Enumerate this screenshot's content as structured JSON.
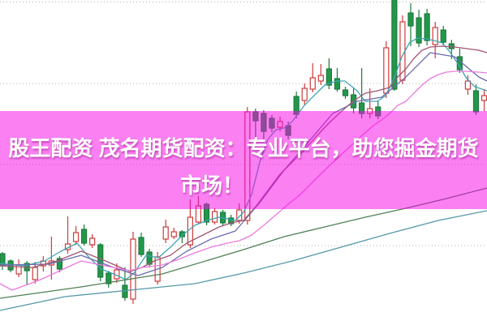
{
  "banner": {
    "line1": "股王配资 茂名期货配资：专业平台，助您掘金期货",
    "line2": "市场！",
    "bg_rgba": "rgba(247,1,229,0.5)",
    "text_color": "#ffffff"
  },
  "chart_data": {
    "type": "candlestick",
    "title": "",
    "xlabel": "",
    "ylabel": "",
    "x_start": 3,
    "x_step": 10.06,
    "ylim": [
      0,
      410
    ],
    "grid": "dotted-horizontal",
    "gridline_values": [
      397.5,
      297,
      197,
      97
    ],
    "gridline_color": "#b0b0b0",
    "up_candle": {
      "style": "hollow",
      "stroke": "#cf3a3a",
      "fill": "#ffffff"
    },
    "down_candle": {
      "style": "filled",
      "stroke": "#1d7a3c",
      "fill": "#22984a"
    },
    "candles_columns": [
      "open",
      "high",
      "low",
      "close"
    ],
    "candles": [
      [
        87,
        89,
        67,
        72
      ],
      [
        78,
        80,
        64,
        67
      ],
      [
        62,
        80,
        58,
        73
      ],
      [
        75,
        78,
        48,
        66
      ],
      [
        55,
        77,
        50,
        70
      ],
      [
        72,
        84,
        65,
        78
      ],
      [
        73,
        108,
        55,
        78
      ],
      [
        81,
        84,
        64,
        68
      ],
      [
        92,
        133,
        87,
        99
      ],
      [
        102,
        121,
        98,
        113
      ],
      [
        117,
        123,
        97,
        100
      ],
      [
        98,
        111,
        94,
        106
      ],
      [
        98,
        100,
        53,
        58
      ],
      [
        63,
        66,
        45,
        50
      ],
      [
        56,
        75,
        51,
        67
      ],
      [
        48,
        70,
        29,
        33
      ],
      [
        31,
        114,
        25,
        105
      ],
      [
        107,
        113,
        83,
        86
      ],
      [
        89,
        93,
        70,
        74
      ],
      [
        53,
        89,
        49,
        83
      ],
      [
        105,
        129,
        100,
        120
      ],
      [
        108,
        119,
        105,
        114
      ],
      [
        114,
        116,
        100,
        108
      ],
      [
        98,
        154,
        94,
        132
      ],
      [
        126,
        158,
        123,
        146
      ],
      [
        148,
        150,
        122,
        126
      ],
      [
        126,
        143,
        123,
        139
      ],
      [
        138,
        141,
        122,
        125
      ],
      [
        131,
        135,
        121,
        124
      ],
      [
        128,
        149,
        124,
        141
      ],
      [
        128,
        268,
        123,
        262
      ],
      [
        262,
        266,
        231,
        251
      ],
      [
        260,
        264,
        226,
        238
      ],
      [
        254,
        258,
        237,
        242
      ],
      [
        243,
        256,
        238,
        250
      ],
      [
        245,
        250,
        228,
        233
      ],
      [
        281,
        287,
        254,
        259
      ],
      [
        276,
        297,
        271,
        291
      ],
      [
        290,
        322,
        286,
        304
      ],
      [
        300,
        321,
        295,
        307
      ],
      [
        315,
        328,
        290,
        295
      ],
      [
        303,
        316,
        287,
        290
      ],
      [
        289,
        293,
        278,
        282
      ],
      [
        283,
        291,
        260,
        267
      ],
      [
        273,
        316,
        254,
        260
      ],
      [
        260,
        291,
        254,
        266
      ],
      [
        268,
        275,
        253,
        257
      ],
      [
        285,
        349,
        279,
        341
      ],
      [
        405,
        409,
        288,
        290
      ],
      [
        301,
        381,
        296,
        373
      ],
      [
        384,
        396,
        343,
        368
      ],
      [
        378,
        388,
        342,
        347
      ],
      [
        383,
        389,
        344,
        350
      ],
      [
        345,
        373,
        328,
        366
      ],
      [
        363,
        368,
        344,
        348
      ],
      [
        346,
        351,
        327,
        340
      ],
      [
        330,
        340,
        310,
        314
      ],
      [
        290,
        307,
        283,
        300
      ],
      [
        288,
        296,
        258,
        262
      ],
      [
        276,
        290,
        263,
        282
      ]
    ],
    "ma_lines": [
      {
        "name": "ma-fast-teal",
        "color": "#3fa3b5",
        "points": [
          [
            0,
            75
          ],
          [
            30,
            72
          ],
          [
            55,
            78
          ],
          [
            75,
            90
          ],
          [
            95,
            100
          ],
          [
            110,
            82
          ],
          [
            125,
            68
          ],
          [
            140,
            62
          ],
          [
            155,
            55
          ],
          [
            165,
            63
          ],
          [
            180,
            85
          ],
          [
            195,
            82
          ],
          [
            210,
            95
          ],
          [
            225,
            110
          ],
          [
            240,
            122
          ],
          [
            255,
            128
          ],
          [
            270,
            132
          ],
          [
            280,
            130
          ],
          [
            290,
            128
          ],
          [
            300,
            138
          ],
          [
            310,
            160
          ],
          [
            320,
            200
          ],
          [
            330,
            228
          ],
          [
            340,
            240
          ],
          [
            350,
            242
          ],
          [
            360,
            250
          ],
          [
            375,
            270
          ],
          [
            390,
            285
          ],
          [
            400,
            295
          ],
          [
            415,
            300
          ],
          [
            425,
            300
          ],
          [
            440,
            288
          ],
          [
            450,
            275
          ],
          [
            465,
            275
          ],
          [
            475,
            282
          ],
          [
            485,
            302
          ],
          [
            495,
            330
          ],
          [
            505,
            348
          ],
          [
            515,
            353
          ],
          [
            525,
            352
          ],
          [
            535,
            350
          ],
          [
            545,
            347
          ],
          [
            555,
            335
          ],
          [
            565,
            320
          ],
          [
            575,
            303
          ],
          [
            585,
            293
          ],
          [
            600,
            288
          ]
        ]
      },
      {
        "name": "ma-slate",
        "color": "#6b6bb0",
        "points": [
          [
            0,
            73
          ],
          [
            60,
            74
          ],
          [
            100,
            85
          ],
          [
            140,
            70
          ],
          [
            170,
            60
          ],
          [
            200,
            70
          ],
          [
            230,
            90
          ],
          [
            260,
            105
          ],
          [
            290,
            115
          ],
          [
            320,
            150
          ],
          [
            350,
            190
          ],
          [
            380,
            225
          ],
          [
            410,
            260
          ],
          [
            440,
            275
          ],
          [
            470,
            280
          ],
          [
            500,
            305
          ],
          [
            530,
            335
          ],
          [
            560,
            330
          ],
          [
            590,
            305
          ],
          [
            600,
            300
          ]
        ]
      },
      {
        "name": "ma-maroon",
        "color": "#a05570",
        "points": [
          [
            0,
            72
          ],
          [
            40,
            70
          ],
          [
            70,
            78
          ],
          [
            100,
            90
          ],
          [
            130,
            78
          ],
          [
            160,
            65
          ],
          [
            175,
            70
          ],
          [
            190,
            78
          ],
          [
            210,
            85
          ],
          [
            230,
            100
          ],
          [
            250,
            110
          ],
          [
            270,
            120
          ],
          [
            285,
            125
          ],
          [
            300,
            128
          ],
          [
            315,
            145
          ],
          [
            330,
            165
          ],
          [
            345,
            185
          ],
          [
            360,
            200
          ],
          [
            375,
            215
          ],
          [
            390,
            232
          ],
          [
            405,
            248
          ],
          [
            420,
            262
          ],
          [
            435,
            275
          ],
          [
            450,
            285
          ],
          [
            465,
            288
          ],
          [
            480,
            292
          ],
          [
            490,
            305
          ],
          [
            500,
            315
          ],
          [
            510,
            328
          ],
          [
            520,
            338
          ],
          [
            530,
            342
          ],
          [
            545,
            343
          ],
          [
            560,
            342
          ],
          [
            575,
            340
          ],
          [
            590,
            338
          ],
          [
            600,
            335
          ]
        ]
      },
      {
        "name": "ma-violet",
        "color": "#ea7ae0",
        "points": [
          [
            0,
            50
          ],
          [
            15,
            42
          ],
          [
            50,
            55
          ],
          [
            100,
            78
          ],
          [
            130,
            72
          ],
          [
            160,
            66
          ],
          [
            175,
            70
          ],
          [
            200,
            73
          ],
          [
            220,
            80
          ],
          [
            240,
            88
          ],
          [
            260,
            95
          ],
          [
            280,
            100
          ],
          [
            295,
            103
          ],
          [
            310,
            110
          ],
          [
            325,
            122
          ],
          [
            340,
            135
          ],
          [
            355,
            148
          ],
          [
            370,
            160
          ],
          [
            385,
            175
          ],
          [
            400,
            190
          ],
          [
            415,
            204
          ],
          [
            430,
            218
          ],
          [
            445,
            232
          ],
          [
            460,
            245
          ],
          [
            470,
            252
          ],
          [
            480,
            260
          ],
          [
            490,
            270
          ],
          [
            500,
            275
          ],
          [
            510,
            285
          ],
          [
            520,
            295
          ],
          [
            530,
            303
          ],
          [
            540,
            308
          ],
          [
            550,
            311
          ],
          [
            560,
            312
          ],
          [
            575,
            312
          ],
          [
            590,
            311
          ],
          [
            600,
            310
          ]
        ]
      },
      {
        "name": "ma-darkgreen",
        "color": "#4e8054",
        "points": [
          [
            0,
            32
          ],
          [
            100,
            46
          ],
          [
            200,
            62
          ],
          [
            300,
            92
          ],
          [
            350,
            108
          ],
          [
            400,
            120
          ],
          [
            450,
            132
          ],
          [
            500,
            143
          ],
          [
            550,
            155
          ],
          [
            600,
            168
          ]
        ]
      },
      {
        "name": "ma-steel",
        "color": "#5598a8",
        "points": [
          [
            0,
            17
          ],
          [
            80,
            34
          ],
          [
            160,
            42
          ],
          [
            240,
            50
          ],
          [
            300,
            63
          ],
          [
            360,
            78
          ],
          [
            420,
            95
          ],
          [
            480,
            112
          ],
          [
            540,
            128
          ],
          [
            600,
            140
          ]
        ]
      }
    ],
    "legend": "none",
    "axes_labels_visible": false
  }
}
